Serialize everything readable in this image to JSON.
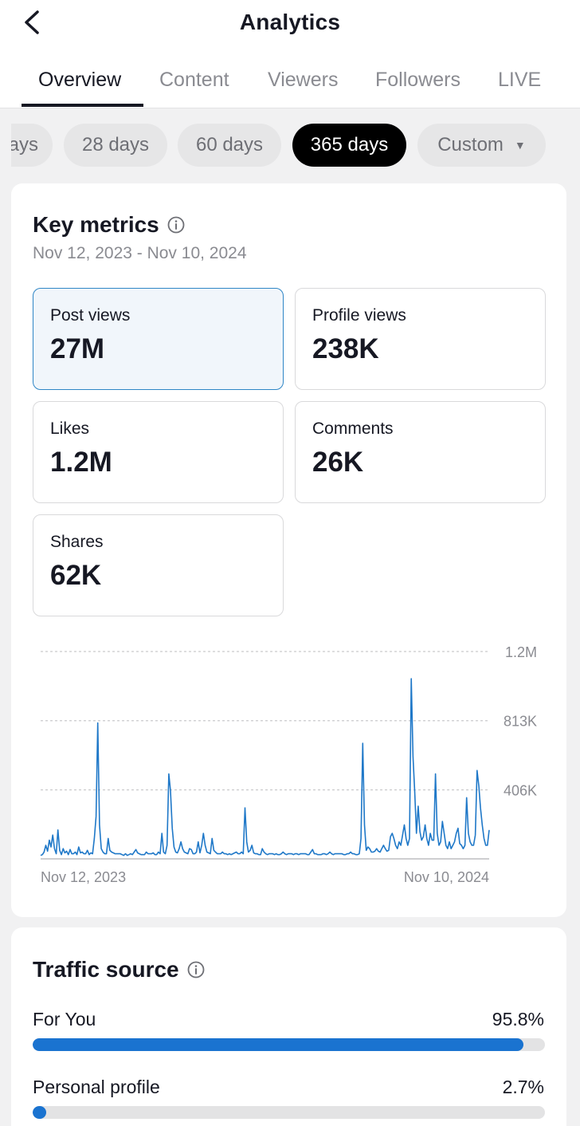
{
  "header": {
    "title": "Analytics",
    "back_icon": "chevron-left-icon"
  },
  "tabs": [
    {
      "label": "Overview",
      "active": true
    },
    {
      "label": "Content",
      "active": false
    },
    {
      "label": "Viewers",
      "active": false
    },
    {
      "label": "Followers",
      "active": false
    },
    {
      "label": "LIVE",
      "active": false
    }
  ],
  "range_chips": [
    {
      "label": "ays",
      "selected": false
    },
    {
      "label": "28 days",
      "selected": false
    },
    {
      "label": "60 days",
      "selected": false
    },
    {
      "label": "365 days",
      "selected": true
    },
    {
      "label": "Custom",
      "selected": false,
      "dropdown": true
    }
  ],
  "key_metrics": {
    "title": "Key metrics",
    "date_range": "Nov 12, 2023 - Nov 10, 2024",
    "metrics": [
      {
        "label": "Post views",
        "value": "27M",
        "selected": true
      },
      {
        "label": "Profile views",
        "value": "238K",
        "selected": false
      },
      {
        "label": "Likes",
        "value": "1.2M",
        "selected": false
      },
      {
        "label": "Comments",
        "value": "26K",
        "selected": false
      },
      {
        "label": "Shares",
        "value": "62K",
        "selected": false
      }
    ]
  },
  "chart_data": {
    "type": "line",
    "title": "",
    "xlabel": "",
    "ylabel": "",
    "x_tick_labels": [
      "Nov 12, 2023",
      "Nov 10, 2024"
    ],
    "y_tick_labels": [
      "406K",
      "813K",
      "1.2M"
    ],
    "y_ticks": [
      406000,
      813000,
      1220000
    ],
    "ylim": [
      0,
      1220000
    ],
    "grid": true,
    "line_color": "#1f78c8",
    "series": [
      {
        "values": [
          20000,
          25000,
          40000,
          80000,
          45000,
          110000,
          70000,
          140000,
          60000,
          30000,
          170000,
          50000,
          25000,
          60000,
          35000,
          45000,
          25000,
          55000,
          30000,
          30000,
          40000,
          25000,
          70000,
          35000,
          40000,
          30000,
          30000,
          50000,
          25000,
          35000,
          30000,
          120000,
          250000,
          800000,
          200000,
          60000,
          40000,
          30000,
          30000,
          120000,
          50000,
          40000,
          35000,
          30000,
          30000,
          30000,
          30000,
          25000,
          20000,
          30000,
          20000,
          25000,
          30000,
          25000,
          40000,
          55000,
          35000,
          30000,
          25000,
          25000,
          25000,
          40000,
          30000,
          30000,
          30000,
          35000,
          25000,
          25000,
          40000,
          30000,
          150000,
          40000,
          30000,
          80000,
          500000,
          400000,
          180000,
          70000,
          40000,
          35000,
          60000,
          100000,
          60000,
          40000,
          35000,
          30000,
          60000,
          55000,
          30000,
          30000,
          40000,
          100000,
          35000,
          80000,
          150000,
          80000,
          40000,
          35000,
          30000,
          120000,
          50000,
          40000,
          30000,
          30000,
          30000,
          40000,
          30000,
          30000,
          25000,
          30000,
          25000,
          30000,
          35000,
          40000,
          30000,
          30000,
          40000,
          30000,
          300000,
          100000,
          40000,
          50000,
          80000,
          35000,
          30000,
          30000,
          25000,
          25000,
          60000,
          40000,
          30000,
          25000,
          30000,
          30000,
          30000,
          25000,
          30000,
          25000,
          25000,
          30000,
          40000,
          30000,
          25000,
          30000,
          30000,
          30000,
          25000,
          30000,
          30000,
          25000,
          30000,
          30000,
          30000,
          30000,
          25000,
          25000,
          40000,
          55000,
          30000,
          30000,
          25000,
          25000,
          25000,
          30000,
          30000,
          25000,
          30000,
          40000,
          30000,
          25000,
          30000,
          30000,
          30000,
          30000,
          30000,
          25000,
          25000,
          30000,
          30000,
          40000,
          30000,
          30000,
          25000,
          25000,
          30000,
          120000,
          680000,
          200000,
          50000,
          70000,
          60000,
          40000,
          40000,
          45000,
          60000,
          45000,
          40000,
          60000,
          80000,
          60000,
          45000,
          50000,
          130000,
          150000,
          120000,
          80000,
          60000,
          100000,
          80000,
          140000,
          200000,
          120000,
          80000,
          120000,
          1060000,
          600000,
          400000,
          150000,
          310000,
          160000,
          110000,
          130000,
          200000,
          120000,
          80000,
          150000,
          110000,
          110000,
          500000,
          150000,
          80000,
          100000,
          220000,
          150000,
          80000,
          60000,
          100000,
          60000,
          80000,
          100000,
          150000,
          180000,
          90000,
          80000,
          60000,
          80000,
          360000,
          150000,
          100000,
          80000,
          80000,
          140000,
          520000,
          430000,
          300000,
          200000,
          120000,
          80000,
          80000,
          170000
        ]
      }
    ]
  },
  "traffic_source": {
    "title": "Traffic source",
    "rows": [
      {
        "label": "For You",
        "pct_text": "95.8%",
        "fraction": 0.958
      },
      {
        "label": "Personal profile",
        "pct_text": "2.7%",
        "fraction": 0.027
      }
    ]
  }
}
